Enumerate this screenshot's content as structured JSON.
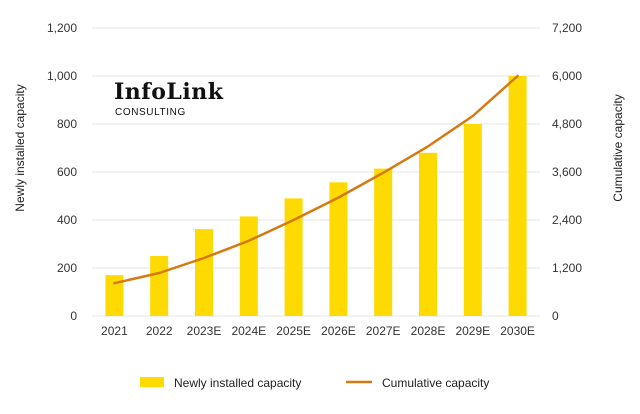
{
  "logo": {
    "name": "InfoLink",
    "subtitle": "CONSULTING"
  },
  "colors": {
    "bar": "#FFDA00",
    "line": "#D47A12",
    "grid": "#E6E6E6"
  },
  "chart_data": {
    "type": "bar",
    "categories": [
      "2021",
      "2022",
      "2023E",
      "2024E",
      "2025E",
      "2026E",
      "2027E",
      "2028E",
      "2029E",
      "2030E"
    ],
    "series": [
      {
        "name": "Newly installed capacity",
        "type": "bar",
        "axis": "left",
        "values": [
          170,
          250,
          362,
          415,
          490,
          557,
          614,
          680,
          800,
          1000
        ]
      },
      {
        "name": "Cumulative capacity",
        "type": "line",
        "axis": "right",
        "values": [
          820,
          1075,
          1450,
          1880,
          2400,
          2960,
          3580,
          4240,
          5000,
          6000
        ]
      }
    ],
    "ylabel": "Newly installed capacity",
    "y2label": "Cumulative capacity",
    "ylim": [
      0,
      1200
    ],
    "y2lim": [
      0,
      7200
    ],
    "yticks": [
      "0",
      "200",
      "400",
      "600",
      "800",
      "1,000",
      "1,200"
    ],
    "y2ticks": [
      "0",
      "1,200",
      "2,400",
      "3,600",
      "4,800",
      "6,000",
      "7,200"
    ],
    "grid": true,
    "legend_position": "bottom"
  }
}
